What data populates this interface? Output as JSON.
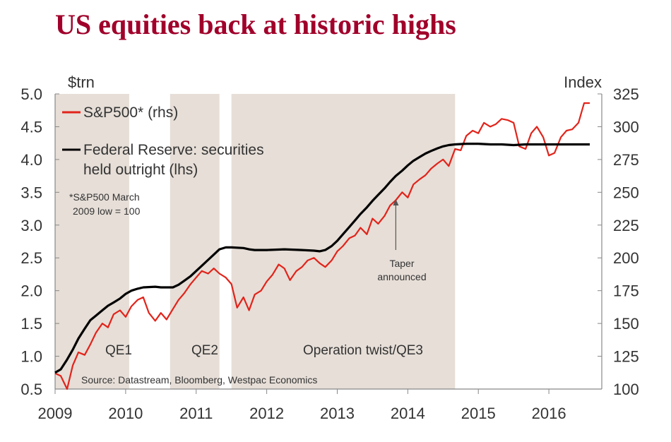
{
  "chart_data": {
    "type": "line",
    "title": "US equities back at historic highs",
    "left_axis": {
      "unit": "$trn",
      "ticks": [
        "5.0",
        "4.5",
        "4.0",
        "3.5",
        "3.0",
        "2.5",
        "2.0",
        "1.5",
        "1.0",
        "0.5"
      ],
      "ylim": [
        0.5,
        5.0
      ]
    },
    "right_axis": {
      "unit": "Index",
      "ticks": [
        "325",
        "300",
        "275",
        "250",
        "225",
        "200",
        "175",
        "150",
        "125",
        "100"
      ],
      "ylim": [
        100,
        325
      ]
    },
    "x_axis": {
      "ticks": [
        "2009",
        "2010",
        "2011",
        "2012",
        "2013",
        "2014",
        "2015",
        "2016"
      ],
      "xlim": [
        2009.0,
        2016.75
      ]
    },
    "legend": [
      {
        "label": "S&P500* (rhs)",
        "color": "#e2231a"
      },
      {
        "label": "Federal Reserve: securities",
        "label2": "held outright (lhs)",
        "color": "#000000"
      }
    ],
    "note": {
      "line1": "*S&P500 March",
      "line2": "2009  low = 100"
    },
    "shaded_periods": [
      {
        "label": "QE1",
        "start": 2009.0,
        "end": 2010.05
      },
      {
        "label": "QE2",
        "start": 2010.63,
        "end": 2011.33
      },
      {
        "label": "Operation twist/QE3",
        "start": 2011.5,
        "end": 2014.67
      }
    ],
    "annotation": {
      "line1": "Taper",
      "line2": "announced",
      "date": 2013.83,
      "points_to_value": 248
    },
    "source": "Source: Datastream, Bloomberg, Westpac Economics",
    "series": [
      {
        "name": "S&P500* (rhs)",
        "axis": "right",
        "color": "#e2231a",
        "points": [
          [
            2009.0,
            112
          ],
          [
            2009.08,
            110
          ],
          [
            2009.17,
            100
          ],
          [
            2009.25,
            118
          ],
          [
            2009.33,
            128
          ],
          [
            2009.42,
            126
          ],
          [
            2009.5,
            134
          ],
          [
            2009.58,
            143
          ],
          [
            2009.67,
            150
          ],
          [
            2009.75,
            147
          ],
          [
            2009.83,
            157
          ],
          [
            2009.92,
            160
          ],
          [
            2010.0,
            155
          ],
          [
            2010.08,
            163
          ],
          [
            2010.17,
            168
          ],
          [
            2010.25,
            170
          ],
          [
            2010.33,
            158
          ],
          [
            2010.42,
            152
          ],
          [
            2010.5,
            158
          ],
          [
            2010.58,
            153
          ],
          [
            2010.67,
            161
          ],
          [
            2010.75,
            168
          ],
          [
            2010.83,
            173
          ],
          [
            2010.92,
            180
          ],
          [
            2011.0,
            185
          ],
          [
            2011.08,
            190
          ],
          [
            2011.17,
            188
          ],
          [
            2011.25,
            192
          ],
          [
            2011.33,
            188
          ],
          [
            2011.42,
            185
          ],
          [
            2011.5,
            180
          ],
          [
            2011.58,
            162
          ],
          [
            2011.67,
            170
          ],
          [
            2011.75,
            160
          ],
          [
            2011.83,
            172
          ],
          [
            2011.92,
            175
          ],
          [
            2012.0,
            182
          ],
          [
            2012.08,
            187
          ],
          [
            2012.17,
            195
          ],
          [
            2012.25,
            192
          ],
          [
            2012.33,
            183
          ],
          [
            2012.42,
            190
          ],
          [
            2012.5,
            193
          ],
          [
            2012.58,
            198
          ],
          [
            2012.67,
            200
          ],
          [
            2012.75,
            196
          ],
          [
            2012.83,
            193
          ],
          [
            2012.92,
            198
          ],
          [
            2013.0,
            205
          ],
          [
            2013.08,
            209
          ],
          [
            2013.17,
            215
          ],
          [
            2013.25,
            217
          ],
          [
            2013.33,
            223
          ],
          [
            2013.42,
            218
          ],
          [
            2013.5,
            230
          ],
          [
            2013.58,
            226
          ],
          [
            2013.67,
            232
          ],
          [
            2013.75,
            240
          ],
          [
            2013.83,
            244
          ],
          [
            2013.92,
            250
          ],
          [
            2014.0,
            246
          ],
          [
            2014.08,
            256
          ],
          [
            2014.17,
            260
          ],
          [
            2014.25,
            263
          ],
          [
            2014.33,
            268
          ],
          [
            2014.42,
            272
          ],
          [
            2014.5,
            275
          ],
          [
            2014.58,
            270
          ],
          [
            2014.67,
            283
          ],
          [
            2014.75,
            282
          ],
          [
            2014.83,
            293
          ],
          [
            2014.92,
            297
          ],
          [
            2015.0,
            295
          ],
          [
            2015.08,
            303
          ],
          [
            2015.17,
            300
          ],
          [
            2015.25,
            302
          ],
          [
            2015.33,
            306
          ],
          [
            2015.42,
            305
          ],
          [
            2015.5,
            303
          ],
          [
            2015.58,
            285
          ],
          [
            2015.67,
            283
          ],
          [
            2015.75,
            295
          ],
          [
            2015.83,
            300
          ],
          [
            2015.92,
            292
          ],
          [
            2016.0,
            278
          ],
          [
            2016.08,
            280
          ],
          [
            2016.17,
            292
          ],
          [
            2016.25,
            297
          ],
          [
            2016.33,
            298
          ],
          [
            2016.42,
            303
          ],
          [
            2016.5,
            318
          ],
          [
            2016.58,
            318
          ]
        ]
      },
      {
        "name": "Federal Reserve: securities held outright (lhs)",
        "axis": "left",
        "color": "#000000",
        "points": [
          [
            2009.0,
            0.75
          ],
          [
            2009.08,
            0.8
          ],
          [
            2009.17,
            0.95
          ],
          [
            2009.25,
            1.1
          ],
          [
            2009.33,
            1.27
          ],
          [
            2009.42,
            1.42
          ],
          [
            2009.5,
            1.55
          ],
          [
            2009.58,
            1.62
          ],
          [
            2009.67,
            1.7
          ],
          [
            2009.75,
            1.77
          ],
          [
            2009.83,
            1.82
          ],
          [
            2009.92,
            1.88
          ],
          [
            2010.0,
            1.95
          ],
          [
            2010.08,
            2.0
          ],
          [
            2010.17,
            2.03
          ],
          [
            2010.25,
            2.05
          ],
          [
            2010.42,
            2.06
          ],
          [
            2010.5,
            2.05
          ],
          [
            2010.58,
            2.05
          ],
          [
            2010.67,
            2.05
          ],
          [
            2010.75,
            2.09
          ],
          [
            2010.83,
            2.15
          ],
          [
            2010.92,
            2.22
          ],
          [
            2011.0,
            2.3
          ],
          [
            2011.08,
            2.38
          ],
          [
            2011.17,
            2.47
          ],
          [
            2011.25,
            2.55
          ],
          [
            2011.33,
            2.63
          ],
          [
            2011.42,
            2.66
          ],
          [
            2011.5,
            2.66
          ],
          [
            2011.67,
            2.65
          ],
          [
            2011.75,
            2.63
          ],
          [
            2011.83,
            2.62
          ],
          [
            2012.0,
            2.62
          ],
          [
            2012.25,
            2.63
          ],
          [
            2012.5,
            2.62
          ],
          [
            2012.67,
            2.61
          ],
          [
            2012.75,
            2.6
          ],
          [
            2012.83,
            2.62
          ],
          [
            2012.92,
            2.68
          ],
          [
            2013.0,
            2.76
          ],
          [
            2013.08,
            2.86
          ],
          [
            2013.17,
            2.97
          ],
          [
            2013.25,
            3.07
          ],
          [
            2013.33,
            3.17
          ],
          [
            2013.42,
            3.27
          ],
          [
            2013.5,
            3.37
          ],
          [
            2013.58,
            3.46
          ],
          [
            2013.67,
            3.56
          ],
          [
            2013.75,
            3.66
          ],
          [
            2013.83,
            3.75
          ],
          [
            2013.92,
            3.83
          ],
          [
            2014.0,
            3.91
          ],
          [
            2014.08,
            3.98
          ],
          [
            2014.17,
            4.04
          ],
          [
            2014.25,
            4.09
          ],
          [
            2014.33,
            4.13
          ],
          [
            2014.42,
            4.17
          ],
          [
            2014.5,
            4.2
          ],
          [
            2014.58,
            4.22
          ],
          [
            2014.67,
            4.23
          ],
          [
            2014.83,
            4.24
          ],
          [
            2015.0,
            4.24
          ],
          [
            2015.17,
            4.23
          ],
          [
            2015.33,
            4.23
          ],
          [
            2015.5,
            4.22
          ],
          [
            2015.67,
            4.23
          ],
          [
            2016.0,
            4.23
          ],
          [
            2016.25,
            4.23
          ],
          [
            2016.58,
            4.23
          ]
        ]
      }
    ]
  }
}
